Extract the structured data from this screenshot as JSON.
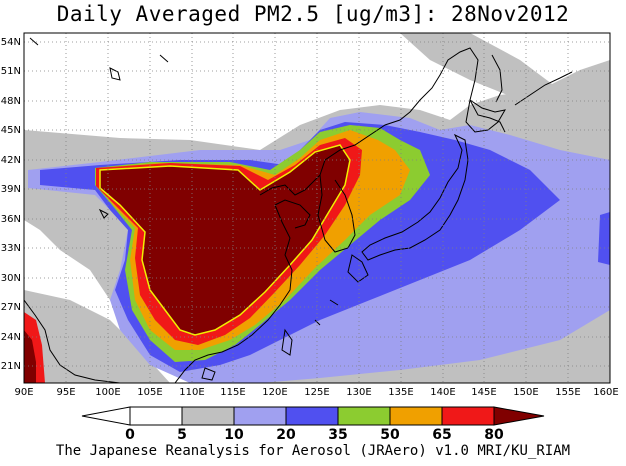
{
  "title": "Daily Averaged PM2.5 [ug/m3]: 28Nov2012",
  "footer": "The Japanese Reanalysis for Aerosol (JRAero) v1.0 MRI/KU_RIAM",
  "lat_labels": [
    "54N",
    "51N",
    "48N",
    "45N",
    "42N",
    "39N",
    "36N",
    "33N",
    "30N",
    "27N",
    "24N",
    "21N"
  ],
  "lon_labels": [
    "90E",
    "95E",
    "100E",
    "105E",
    "110E",
    "115E",
    "120E",
    "125E",
    "130E",
    "135E",
    "140E",
    "145E",
    "150E",
    "155E",
    "160E"
  ],
  "colorbar": {
    "colors": [
      "#ffffff",
      "#c0c0c0",
      "#a0a0f0",
      "#5050f0",
      "#8ccc30",
      "#f0a000",
      "#f01818",
      "#800000"
    ],
    "tick_labels": [
      "0",
      "5",
      "10",
      "20",
      "35",
      "50",
      "65",
      "80"
    ]
  }
}
